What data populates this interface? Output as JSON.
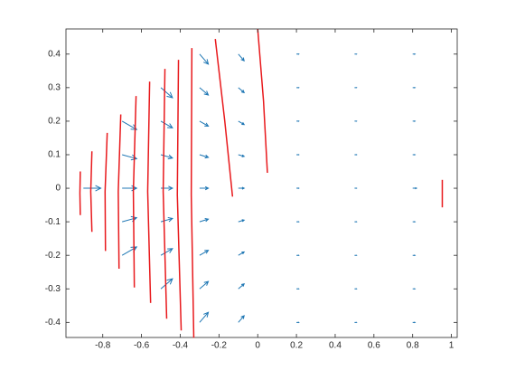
{
  "chart_data": {
    "type": "quiver",
    "xlim": [
      -0.99,
      1.03
    ],
    "ylim": [
      -0.445,
      0.475
    ],
    "xticks": [
      -0.8,
      -0.6,
      -0.4,
      -0.2,
      0,
      0.2,
      0.4,
      0.6,
      0.8,
      1
    ],
    "yticks": [
      -0.4,
      -0.3,
      -0.2,
      -0.1,
      0,
      0.1,
      0.2,
      0.3,
      0.4
    ],
    "box": true,
    "arrow_color": "#1f77b4",
    "line_color": "#e8191c",
    "arrows": {
      "x": [
        -0.9,
        -0.7,
        -0.7,
        -0.7,
        -0.7,
        -0.7,
        -0.5,
        -0.5,
        -0.5,
        -0.5,
        -0.5,
        -0.5,
        -0.5,
        -0.3,
        -0.3,
        -0.3,
        -0.3,
        -0.3,
        -0.3,
        -0.3,
        -0.3,
        -0.3,
        -0.1,
        -0.1,
        -0.1,
        -0.1,
        -0.1,
        -0.1,
        -0.1,
        -0.1,
        -0.1,
        0.2,
        0.2,
        0.2,
        0.2,
        0.2,
        0.2,
        0.2,
        0.2,
        0.2,
        0.5,
        0.5,
        0.5,
        0.5,
        0.5,
        0.5,
        0.5,
        0.5,
        0.5,
        0.8,
        0.8,
        0.8,
        0.8,
        0.8,
        0.8,
        0.8,
        0.8,
        0.8
      ],
      "y": [
        0,
        -0.2,
        -0.1,
        0,
        0.1,
        0.2,
        -0.3,
        -0.2,
        -0.1,
        0,
        0.1,
        0.2,
        0.3,
        -0.4,
        -0.3,
        -0.2,
        -0.1,
        0,
        0.1,
        0.2,
        0.3,
        0.4,
        -0.4,
        -0.3,
        -0.2,
        -0.1,
        0,
        0.1,
        0.2,
        0.3,
        0.4,
        -0.4,
        -0.3,
        -0.2,
        -0.1,
        0,
        0.1,
        0.2,
        0.3,
        0.4,
        -0.4,
        -0.3,
        -0.2,
        -0.1,
        0,
        0.1,
        0.2,
        0.3,
        0.4,
        -0.4,
        -0.3,
        -0.2,
        -0.1,
        0,
        0.1,
        0.2,
        0.3,
        0.4
      ],
      "u": [
        0.09,
        0.075,
        0.075,
        0.075,
        0.075,
        0.075,
        0.06,
        0.06,
        0.06,
        0.06,
        0.06,
        0.06,
        0.06,
        0.045,
        0.045,
        0.045,
        0.045,
        0.045,
        0.045,
        0.045,
        0.045,
        0.045,
        0.03,
        0.03,
        0.03,
        0.03,
        0.03,
        0.03,
        0.03,
        0.03,
        0.03,
        0.012,
        0.012,
        0.012,
        0.012,
        0.012,
        0.012,
        0.012,
        0.012,
        0.012,
        0.01,
        0.01,
        0.01,
        0.01,
        0.01,
        0.01,
        0.01,
        0.01,
        0.01,
        0.012,
        0.012,
        0.012,
        0.012,
        0.02,
        0.012,
        0.012,
        0.012,
        0.012
      ],
      "v": [
        0,
        0.025,
        0.012,
        0,
        -0.012,
        -0.025,
        0.03,
        0.02,
        0.01,
        0,
        -0.01,
        -0.02,
        -0.03,
        0.03,
        0.022,
        0.015,
        0.008,
        0,
        -0.008,
        -0.015,
        -0.022,
        -0.03,
        0.02,
        0.015,
        0.01,
        0.005,
        0,
        -0.005,
        -0.01,
        -0.015,
        -0.02,
        0,
        0,
        0,
        0,
        0,
        0,
        0,
        0,
        0,
        0,
        0,
        0,
        0,
        0,
        0,
        0,
        0,
        0,
        0,
        0,
        0,
        0,
        0,
        0,
        0,
        0,
        0
      ]
    },
    "lines": [
      {
        "x": [
          -0.916,
          -0.918,
          -0.916
        ],
        "y": [
          0.05,
          -0.015,
          -0.08
        ]
      },
      {
        "x": [
          -0.856,
          -0.862,
          -0.856
        ],
        "y": [
          0.11,
          -0.01,
          -0.13
        ]
      },
      {
        "x": [
          -0.777,
          -0.788,
          -0.786
        ],
        "y": [
          0.165,
          -0.01,
          -0.187
        ]
      },
      {
        "x": [
          -0.707,
          -0.72,
          -0.716
        ],
        "y": [
          0.22,
          -0.01,
          -0.24
        ]
      },
      {
        "x": [
          -0.628,
          -0.642,
          -0.637
        ],
        "y": [
          0.275,
          -0.01,
          -0.296
        ]
      },
      {
        "x": [
          -0.558,
          -0.568,
          -0.553
        ],
        "y": [
          0.318,
          -0.01,
          -0.342
        ]
      },
      {
        "x": [
          -0.479,
          -0.488,
          -0.47
        ],
        "y": [
          0.356,
          -0.01,
          -0.389
        ]
      },
      {
        "x": [
          -0.409,
          -0.415,
          -0.395
        ],
        "y": [
          0.383,
          -0.02,
          -0.424
        ]
      },
      {
        "x": [
          -0.34,
          -0.343,
          -0.33
        ],
        "y": [
          0.418,
          -0.02,
          -0.446
        ]
      },
      {
        "x": [
          -0.219,
          -0.17,
          -0.13
        ],
        "y": [
          0.445,
          0.2,
          -0.025
        ]
      },
      {
        "x": [
          0,
          0.03,
          0.05
        ],
        "y": [
          0.475,
          0.26,
          0.046
        ]
      },
      {
        "x": [
          0.953,
          0.953
        ],
        "y": [
          0.025,
          -0.057
        ]
      }
    ]
  }
}
